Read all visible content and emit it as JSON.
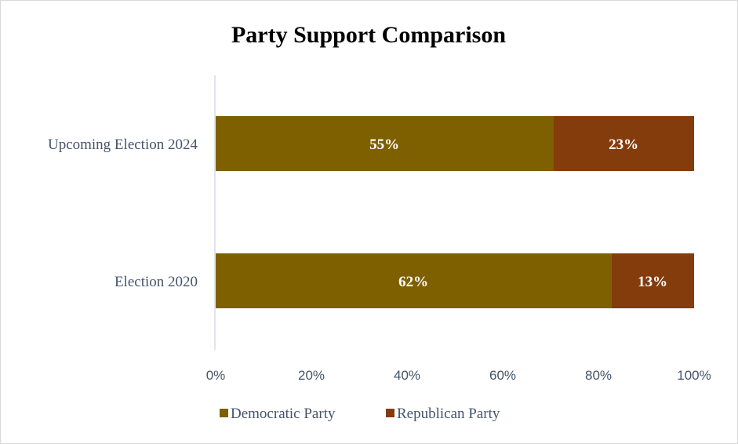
{
  "chart_data": {
    "type": "bar",
    "orientation": "horizontal",
    "stacked": "percent",
    "title": "Party Support Comparison",
    "categories": [
      "Upcoming Election 2024",
      "Election 2020"
    ],
    "series": [
      {
        "name": "Democratic Party",
        "values": [
          55,
          62
        ],
        "labels": [
          "55%",
          "62%"
        ],
        "color": "#7F6000"
      },
      {
        "name": "Republican Party",
        "values": [
          23,
          13
        ],
        "labels": [
          "23%",
          "13%"
        ],
        "color": "#843C0C"
      }
    ],
    "xlim": [
      0,
      100
    ],
    "xticks": [
      "0%",
      "20%",
      "40%",
      "60%",
      "80%",
      "100%"
    ],
    "grid": false,
    "legend": "bottom"
  }
}
